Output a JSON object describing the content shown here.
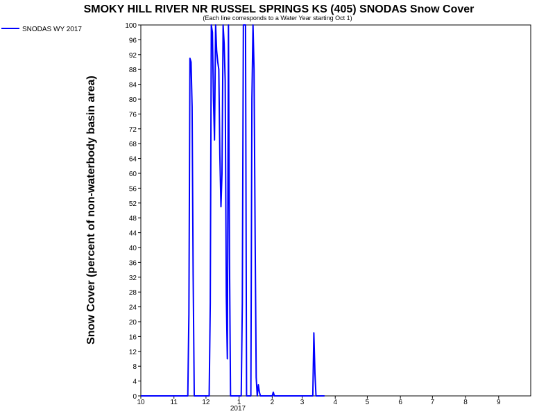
{
  "chart_data": {
    "type": "line",
    "title": "SMOKY HILL RIVER NR RUSSEL SPRINGS KS (405) SNODAS Snow Cover",
    "subtitle": "(Each line corresponds to a Water Year starting Oct 1)",
    "ylabel": "Snow Cover (percent of non-waterbody basin area)",
    "xlabel": "",
    "ylim": [
      0,
      100
    ],
    "y_ticks": [
      0,
      4,
      8,
      12,
      16,
      20,
      24,
      28,
      32,
      36,
      40,
      44,
      48,
      52,
      56,
      60,
      64,
      68,
      72,
      76,
      80,
      84,
      88,
      92,
      96,
      100
    ],
    "x_ticks": [
      "10",
      "11",
      "12",
      "1",
      "2",
      "3",
      "4",
      "5",
      "6",
      "7",
      "8",
      "9"
    ],
    "x_year_label": "2017",
    "grid": false,
    "legend_position": "top-left",
    "series": [
      {
        "name": "SNODAS WY 2017",
        "color": "#0000ff",
        "points": [
          [
            "2016-10-01",
            0
          ],
          [
            "2016-11-01",
            0
          ],
          [
            "2016-11-14",
            0
          ],
          [
            "2016-11-15",
            22
          ],
          [
            "2016-11-16",
            91
          ],
          [
            "2016-11-17",
            90
          ],
          [
            "2016-11-18",
            78
          ],
          [
            "2016-11-19",
            33
          ],
          [
            "2016-11-20",
            0
          ],
          [
            "2016-12-01",
            0
          ],
          [
            "2016-12-04",
            0
          ],
          [
            "2016-12-05",
            25
          ],
          [
            "2016-12-06",
            100
          ],
          [
            "2016-12-07",
            98
          ],
          [
            "2016-12-08",
            80
          ],
          [
            "2016-12-09",
            69
          ],
          [
            "2016-12-10",
            100
          ],
          [
            "2016-12-11",
            93
          ],
          [
            "2016-12-12",
            90
          ],
          [
            "2016-12-13",
            88
          ],
          [
            "2016-12-14",
            65
          ],
          [
            "2016-12-15",
            51
          ],
          [
            "2016-12-16",
            60
          ],
          [
            "2016-12-17",
            100
          ],
          [
            "2016-12-18",
            95
          ],
          [
            "2016-12-19",
            85
          ],
          [
            "2016-12-20",
            27
          ],
          [
            "2016-12-21",
            10
          ],
          [
            "2016-12-22",
            100
          ],
          [
            "2016-12-23",
            37
          ],
          [
            "2016-12-24",
            0
          ],
          [
            "2017-01-01",
            0
          ],
          [
            "2017-01-03",
            0
          ],
          [
            "2017-01-04",
            25
          ],
          [
            "2017-01-05",
            100
          ],
          [
            "2017-01-06",
            100
          ],
          [
            "2017-01-07",
            100
          ],
          [
            "2017-01-08",
            0
          ],
          [
            "2017-01-10",
            0
          ],
          [
            "2017-01-12",
            0
          ],
          [
            "2017-01-13",
            80
          ],
          [
            "2017-01-14",
            100
          ],
          [
            "2017-01-15",
            88
          ],
          [
            "2017-01-16",
            42
          ],
          [
            "2017-01-17",
            5
          ],
          [
            "2017-01-18",
            0
          ],
          [
            "2017-01-19",
            3
          ],
          [
            "2017-01-20",
            1
          ],
          [
            "2017-01-21",
            0
          ],
          [
            "2017-02-01",
            0
          ],
          [
            "2017-02-02",
            1
          ],
          [
            "2017-02-03",
            0
          ],
          [
            "2017-03-01",
            0
          ],
          [
            "2017-03-11",
            0
          ],
          [
            "2017-03-12",
            17
          ],
          [
            "2017-03-13",
            6
          ],
          [
            "2017-03-14",
            0
          ],
          [
            "2017-03-22",
            0
          ]
        ]
      }
    ]
  }
}
